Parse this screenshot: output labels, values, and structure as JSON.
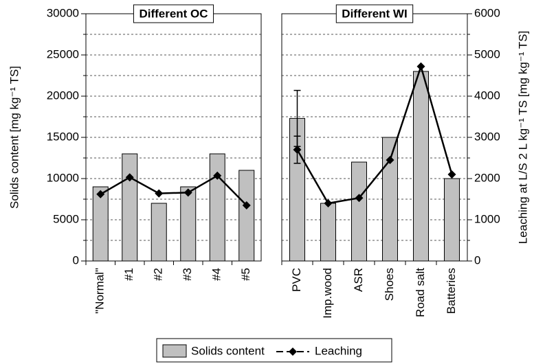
{
  "chart_data": [
    {
      "type": "bar",
      "title": "Different OC",
      "ylabel": "Solids content [mg kg⁻¹ TS]",
      "categories": [
        "\"Normal\"",
        "#1",
        "#2",
        "#3",
        "#4",
        "#5"
      ],
      "series": [
        {
          "name": "Solids content",
          "color": "#c0c0c0",
          "values": [
            9000,
            13000,
            7000,
            9000,
            13000,
            11000
          ]
        },
        {
          "name": "Leaching",
          "color": "#000000",
          "axis": "y2",
          "values": [
            1620,
            2030,
            1640,
            1660,
            2070,
            1350
          ]
        }
      ],
      "ylim": [
        0,
        30000
      ],
      "yticks": [
        0,
        5000,
        10000,
        15000,
        20000,
        25000,
        30000
      ],
      "yticks_minor": [
        2500,
        7500,
        12500,
        17500,
        22500,
        27500
      ],
      "y2lim": [
        0,
        6000
      ],
      "grid": true
    },
    {
      "type": "bar",
      "title": "Different WI",
      "y2label": "Leaching at L/S 2 L kg⁻¹ TS [mg kg⁻¹ TS]",
      "categories": [
        "PVC",
        "Imp.wood",
        "ASR",
        "Shoes",
        "Road salt",
        "Batteries"
      ],
      "series": [
        {
          "name": "Solids content",
          "color": "#c0c0c0",
          "values": [
            17300,
            7000,
            12000,
            15000,
            23000,
            10000
          ],
          "errors": [
            3400,
            null,
            null,
            null,
            null,
            null
          ]
        },
        {
          "name": "Leaching",
          "color": "#000000",
          "axis": "y2",
          "values": [
            2700,
            1400,
            1530,
            2450,
            4720,
            2100
          ],
          "errors": [
            330,
            null,
            null,
            null,
            null,
            null
          ]
        }
      ],
      "ylim": [
        0,
        30000
      ],
      "y2lim": [
        0,
        6000
      ],
      "y2ticks": [
        0,
        1000,
        2000,
        3000,
        4000,
        5000,
        6000
      ],
      "y2ticks_minor": [
        500,
        1500,
        2500,
        3500,
        4500,
        5500
      ],
      "grid": true
    }
  ]
}
